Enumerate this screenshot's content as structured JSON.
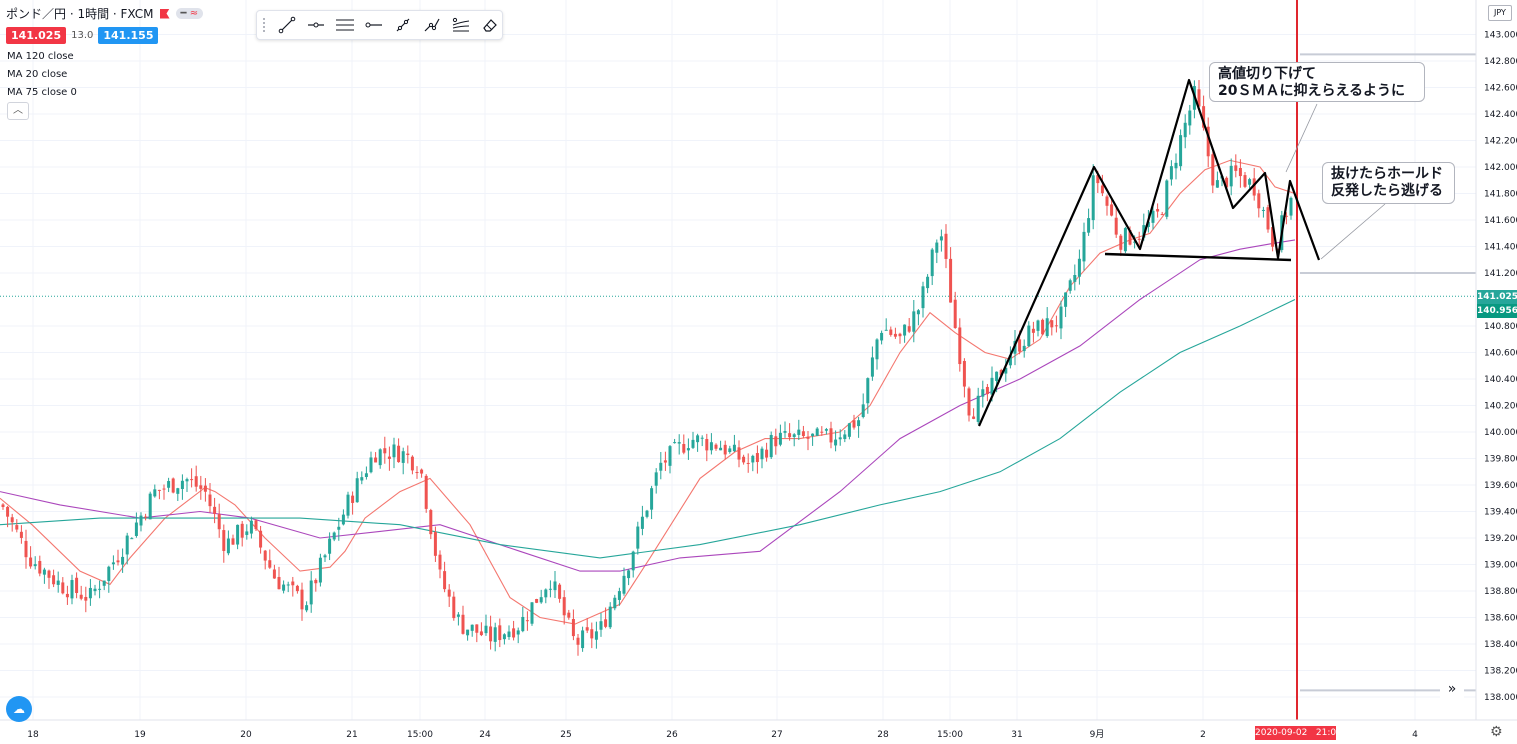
{
  "header": {
    "symbol": "ポンド／円 · 1時間 · FXCM",
    "indicator_pill": "≈",
    "sell_price": "141.025",
    "spread": "13.0",
    "buy_price": "141.155",
    "ma_labels": [
      "MA 120 close",
      "MA 20 close",
      "MA 75 close 0"
    ],
    "collapse_icon": "chevron-up-icon"
  },
  "toolbar": {
    "tools": [
      "trend-line-icon",
      "horizontal-ray-icon",
      "parallel-lines-icon",
      "horizontal-line-icon",
      "path-icon",
      "polyline-icon",
      "pitchfork-icon",
      "eraser-icon"
    ]
  },
  "annotations": {
    "callout1_line1": "高値切り下げて",
    "callout1_line2": "20ＳＭＡに抑えらえるように",
    "callout2_line1": "抜けたらホールド",
    "callout2_line2": "反発したら逃げる"
  },
  "price_axis": {
    "currency": "JPY",
    "last_price_tag": "141.025",
    "ma_price_tag": "140.956",
    "ticks": [
      "138.000",
      "138.200",
      "138.400",
      "138.600",
      "138.800",
      "139.000",
      "139.200",
      "139.400",
      "139.600",
      "139.800",
      "140.000",
      "140.200",
      "140.400",
      "140.600",
      "140.800",
      "141.200",
      "141.400",
      "141.600",
      "141.800",
      "142.000",
      "142.200",
      "142.400",
      "142.600",
      "142.800",
      "143.000"
    ]
  },
  "time_axis": {
    "labels": [
      "18",
      "19",
      "20",
      "21",
      "15:00",
      "24",
      "25",
      "26",
      "27",
      "28",
      "15:00",
      "31",
      "9月",
      "2",
      "4"
    ],
    "date_tag": "2020-09-02",
    "time_tag": "21:00"
  },
  "colors": {
    "up": "#26a69a",
    "down": "#ef5350",
    "ma20": "#f4776f",
    "ma75": "#ab47bc",
    "ma120": "#26a69a",
    "vline": "#e0262e"
  },
  "chart_data": {
    "type": "candlestick",
    "ylim": [
      137.95,
      143.15
    ],
    "series": [
      {
        "name": "MA 20 close",
        "color": "#f4776f",
        "x": [
          0,
          32,
          80,
          110,
          130,
          165,
          205,
          215,
          235,
          265,
          300,
          330,
          345,
          365,
          400,
          430,
          470,
          510,
          540,
          575,
          620,
          650,
          700,
          735,
          765,
          800,
          840,
          870,
          900,
          930,
          955,
          985,
          1010,
          1040,
          1070,
          1100,
          1130,
          1150,
          1180,
          1205,
          1230,
          1260,
          1275,
          1295
        ],
        "y": [
          139.5,
          139.3,
          138.95,
          138.85,
          139.05,
          139.35,
          139.58,
          139.55,
          139.45,
          139.2,
          138.95,
          138.98,
          139.1,
          139.35,
          139.55,
          139.65,
          139.3,
          138.75,
          138.6,
          138.55,
          138.7,
          139.05,
          139.65,
          139.85,
          139.95,
          139.95,
          140.0,
          140.2,
          140.6,
          140.9,
          140.75,
          140.6,
          140.55,
          140.7,
          141.1,
          141.35,
          141.45,
          141.5,
          141.8,
          141.98,
          142.05,
          142.0,
          141.85,
          141.8
        ]
      },
      {
        "name": "MA 75 close 0",
        "color": "#ab47bc",
        "x": [
          0,
          60,
          140,
          200,
          250,
          320,
          380,
          440,
          520,
          580,
          620,
          680,
          760,
          840,
          900,
          960,
          1020,
          1080,
          1140,
          1200,
          1240,
          1270,
          1295
        ],
        "y": [
          139.55,
          139.45,
          139.35,
          139.4,
          139.35,
          139.2,
          139.25,
          139.3,
          139.1,
          138.95,
          138.95,
          139.05,
          139.1,
          139.55,
          139.95,
          140.2,
          140.4,
          140.65,
          141.0,
          141.3,
          141.38,
          141.42,
          141.45
        ]
      },
      {
        "name": "MA 120 close",
        "color": "#26a69a",
        "x": [
          0,
          100,
          200,
          300,
          400,
          500,
          600,
          700,
          800,
          880,
          940,
          1000,
          1060,
          1120,
          1180,
          1240,
          1295
        ],
        "y": [
          139.3,
          139.35,
          139.35,
          139.35,
          139.3,
          139.15,
          139.05,
          139.15,
          139.3,
          139.45,
          139.55,
          139.7,
          139.95,
          140.3,
          140.6,
          140.8,
          141.0
        ]
      }
    ],
    "candle_anchors": {
      "x": [
        2,
        30,
        60,
        90,
        120,
        155,
        185,
        205,
        225,
        250,
        275,
        305,
        330,
        350,
        375,
        400,
        420,
        440,
        460,
        490,
        520,
        550,
        575,
        600,
        630,
        660,
        690,
        720,
        750,
        775,
        800,
        830,
        860,
        880,
        900,
        920,
        940,
        955,
        970,
        990,
        1010,
        1030,
        1060,
        1080,
        1095,
        1120,
        1140,
        1160,
        1180,
        1195,
        1215,
        1235,
        1255,
        1275,
        1290
      ],
      "y": [
        139.45,
        139.05,
        138.85,
        138.75,
        139.1,
        139.55,
        139.65,
        139.55,
        139.15,
        139.3,
        138.9,
        138.7,
        139.15,
        139.5,
        139.85,
        139.85,
        139.75,
        138.9,
        138.55,
        138.45,
        138.55,
        138.9,
        138.4,
        138.5,
        139.05,
        139.75,
        139.95,
        139.9,
        139.75,
        139.95,
        139.95,
        139.95,
        140.1,
        140.8,
        140.7,
        140.95,
        141.55,
        140.8,
        140.15,
        140.3,
        140.6,
        140.75,
        140.85,
        141.3,
        141.95,
        141.45,
        141.5,
        141.65,
        142.2,
        142.55,
        141.85,
        141.95,
        141.85,
        141.4,
        141.75
      ]
    },
    "horizontal_levels": [
      142.85,
      141.2,
      138.05
    ],
    "last_price": 141.025,
    "vertical_marker_x": 1297
  }
}
